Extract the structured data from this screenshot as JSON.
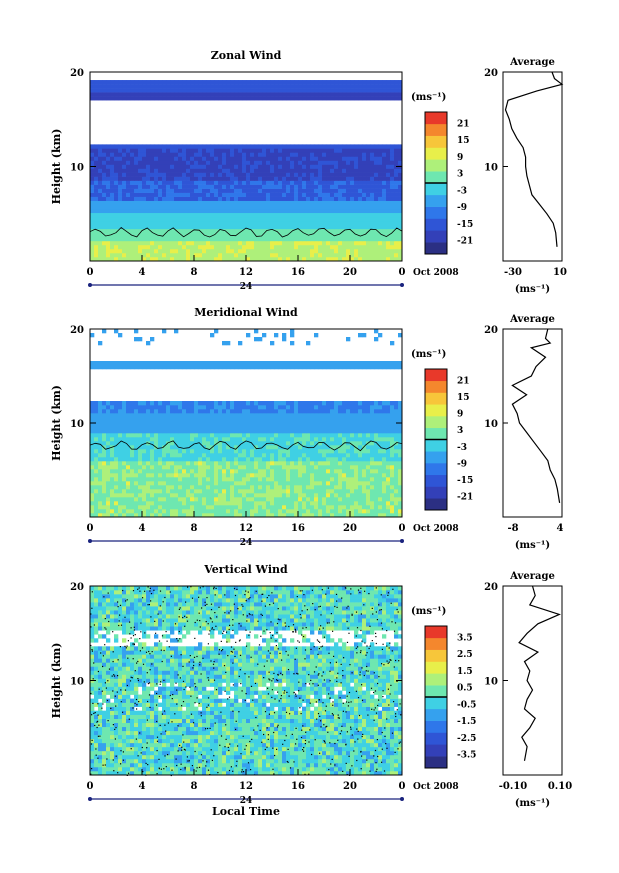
{
  "colors": {
    "scale": [
      "#2b2f83",
      "#3340b8",
      "#2f55d6",
      "#2f77ea",
      "#35a1ee",
      "#3fd0e4",
      "#6ee7b0",
      "#aef07a",
      "#e8ef4a",
      "#f7c63a",
      "#f4872d",
      "#e8392a"
    ]
  },
  "chart_data": [
    {
      "type": "heatmap",
      "title": "Zonal Wind",
      "ylabel": "Height (km)",
      "ylim": [
        0,
        20
      ],
      "y_ticks": [
        "20",
        "10"
      ],
      "xlim": [
        0,
        24
      ],
      "x_ticks": [
        "0",
        "4",
        "8",
        "12",
        "16",
        "20",
        "0"
      ],
      "date_label": "Oct 2008",
      "day_label": "24",
      "colorbar": {
        "unit": "(ms⁻¹)",
        "ticks": [
          "21",
          "15",
          "9",
          "3",
          "-3",
          "-9",
          "-15",
          "-21"
        ]
      },
      "profile": {
        "title": "Average",
        "x_ticks": [
          "-30",
          "10"
        ],
        "xlim": [
          -35,
          12
        ],
        "xlabel": "(ms⁻¹)",
        "y_ticks": [
          "20",
          "10"
        ],
        "heights": [
          1.5,
          3,
          4,
          5,
          6,
          7,
          8,
          9,
          10,
          11,
          12,
          13,
          14,
          15,
          16,
          17,
          18,
          18.7,
          19.3,
          20
        ],
        "values": [
          8,
          7,
          5,
          0,
          -6,
          -12,
          -14,
          -16,
          -17,
          -17,
          -19,
          -24,
          -28,
          -30,
          -33,
          -31,
          -8,
          12,
          6,
          4
        ]
      }
    },
    {
      "type": "heatmap",
      "title": "Meridional Wind",
      "ylabel": "Height (km)",
      "ylim": [
        0,
        20
      ],
      "y_ticks": [
        "20",
        "10"
      ],
      "xlim": [
        0,
        24
      ],
      "x_ticks": [
        "0",
        "4",
        "8",
        "12",
        "16",
        "20",
        "0"
      ],
      "date_label": "Oct 2008",
      "day_label": "24",
      "colorbar": {
        "unit": "(ms⁻¹)",
        "ticks": [
          "21",
          "15",
          "9",
          "3",
          "-3",
          "-9",
          "-15",
          "-21"
        ]
      },
      "profile": {
        "title": "Average",
        "x_ticks": [
          "-8",
          "4"
        ],
        "xlim": [
          -8,
          4.5
        ],
        "xlabel": "(ms⁻¹)",
        "y_ticks": [
          "20",
          "10"
        ],
        "heights": [
          1.5,
          3,
          4,
          5,
          6,
          7,
          8,
          9,
          10,
          11,
          12,
          13,
          14,
          15,
          16,
          17,
          18,
          18.5,
          19,
          20
        ],
        "values": [
          4,
          3.5,
          3,
          2,
          1.5,
          0,
          -1.5,
          -3,
          -4.5,
          -5,
          -6,
          -3,
          -6,
          -2,
          -1,
          1,
          -2,
          2,
          1,
          1.5
        ]
      }
    },
    {
      "type": "heatmap",
      "title": "Vertical Wind",
      "ylabel": "Height (km)",
      "ylim": [
        0,
        20
      ],
      "y_ticks": [
        "20",
        "10"
      ],
      "xlim": [
        0,
        24
      ],
      "x_ticks": [
        "0",
        "4",
        "8",
        "12",
        "16",
        "20",
        "0"
      ],
      "date_label": "Oct 2008",
      "day_label": "24",
      "xlabel": "Local Time",
      "colorbar": {
        "unit": "(ms⁻¹)",
        "ticks": [
          "3.5",
          "2.5",
          "1.5",
          "0.5",
          "-0.5",
          "-1.5",
          "-2.5",
          "-3.5"
        ]
      },
      "profile": {
        "title": "Average",
        "x_ticks": [
          "-0.10",
          "0.10"
        ],
        "xlim": [
          -0.11,
          0.11
        ],
        "xlabel": "(ms⁻¹)",
        "y_ticks": [
          "20",
          "10"
        ],
        "heights": [
          1.5,
          3,
          4,
          5,
          6,
          7,
          8,
          9,
          10,
          11,
          12,
          13,
          14,
          15,
          16,
          17,
          18,
          19,
          20
        ],
        "values": [
          -0.03,
          -0.02,
          -0.04,
          -0.01,
          0.01,
          -0.03,
          -0.02,
          0.0,
          -0.02,
          -0.01,
          -0.03,
          0.02,
          -0.05,
          -0.02,
          0.02,
          0.1,
          -0.01,
          0.01,
          0.0
        ]
      }
    }
  ]
}
